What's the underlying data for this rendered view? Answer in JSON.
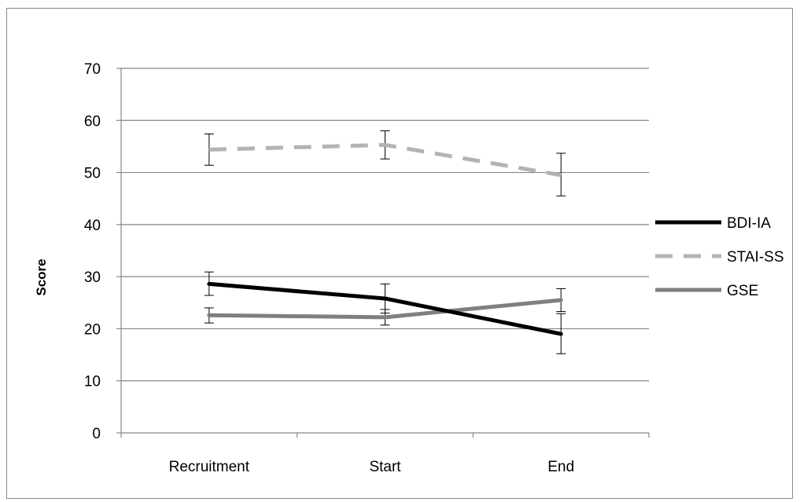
{
  "chart_data": {
    "type": "line",
    "title": "",
    "xlabel": "",
    "ylabel": "Score",
    "categories": [
      "Recruitment",
      "Start",
      "End"
    ],
    "ylim": [
      0,
      70
    ],
    "yticks": [
      0,
      10,
      20,
      30,
      40,
      50,
      60,
      70
    ],
    "grid": true,
    "legend_position": "right",
    "series": [
      {
        "name": "BDI-IA",
        "values": [
          28.6,
          25.8,
          19.0
        ],
        "error_low": [
          26.4,
          23.0,
          15.2
        ],
        "error_high": [
          30.9,
          28.6,
          22.9
        ],
        "color": "#000000",
        "style": "solid"
      },
      {
        "name": "STAI-SS",
        "values": [
          54.4,
          55.3,
          49.5
        ],
        "error_low": [
          51.4,
          52.6,
          45.5
        ],
        "error_high": [
          57.4,
          58.0,
          53.7
        ],
        "color": "#b3b3b3",
        "style": "dashed"
      },
      {
        "name": "GSE",
        "values": [
          22.6,
          22.2,
          25.5
        ],
        "error_low": [
          21.1,
          20.7,
          23.3
        ],
        "error_high": [
          24.0,
          23.7,
          27.7
        ],
        "color": "#7f7f7f",
        "style": "solid"
      }
    ]
  }
}
